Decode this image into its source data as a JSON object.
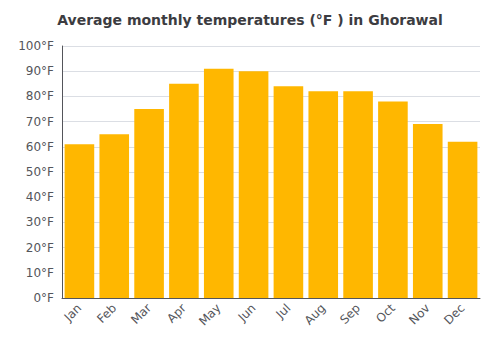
{
  "chart_data": {
    "type": "bar",
    "title": "Average monthly temperatures (°F ) in Ghorawal",
    "categories": [
      "Jan",
      "Feb",
      "Mar",
      "Apr",
      "May",
      "Jun",
      "Jul",
      "Aug",
      "Sep",
      "Oct",
      "Nov",
      "Dec"
    ],
    "values": [
      61,
      65,
      75,
      85,
      91,
      90,
      84,
      82,
      82,
      78,
      69,
      62
    ],
    "color": "#FFB700",
    "ylim": [
      0,
      100
    ],
    "yticks": [
      {
        "value": 0,
        "label": "0°F"
      },
      {
        "value": 10,
        "label": "10°F"
      },
      {
        "value": 20,
        "label": "20°F"
      },
      {
        "value": 30,
        "label": "30°F"
      },
      {
        "value": 40,
        "label": "40°F"
      },
      {
        "value": 50,
        "label": "50°F"
      },
      {
        "value": 60,
        "label": "60°F"
      },
      {
        "value": 70,
        "label": "70°F"
      },
      {
        "value": 80,
        "label": "80°F"
      },
      {
        "value": 90,
        "label": "90°F"
      },
      {
        "value": 100,
        "label": "100°F"
      }
    ],
    "grid": true
  }
}
